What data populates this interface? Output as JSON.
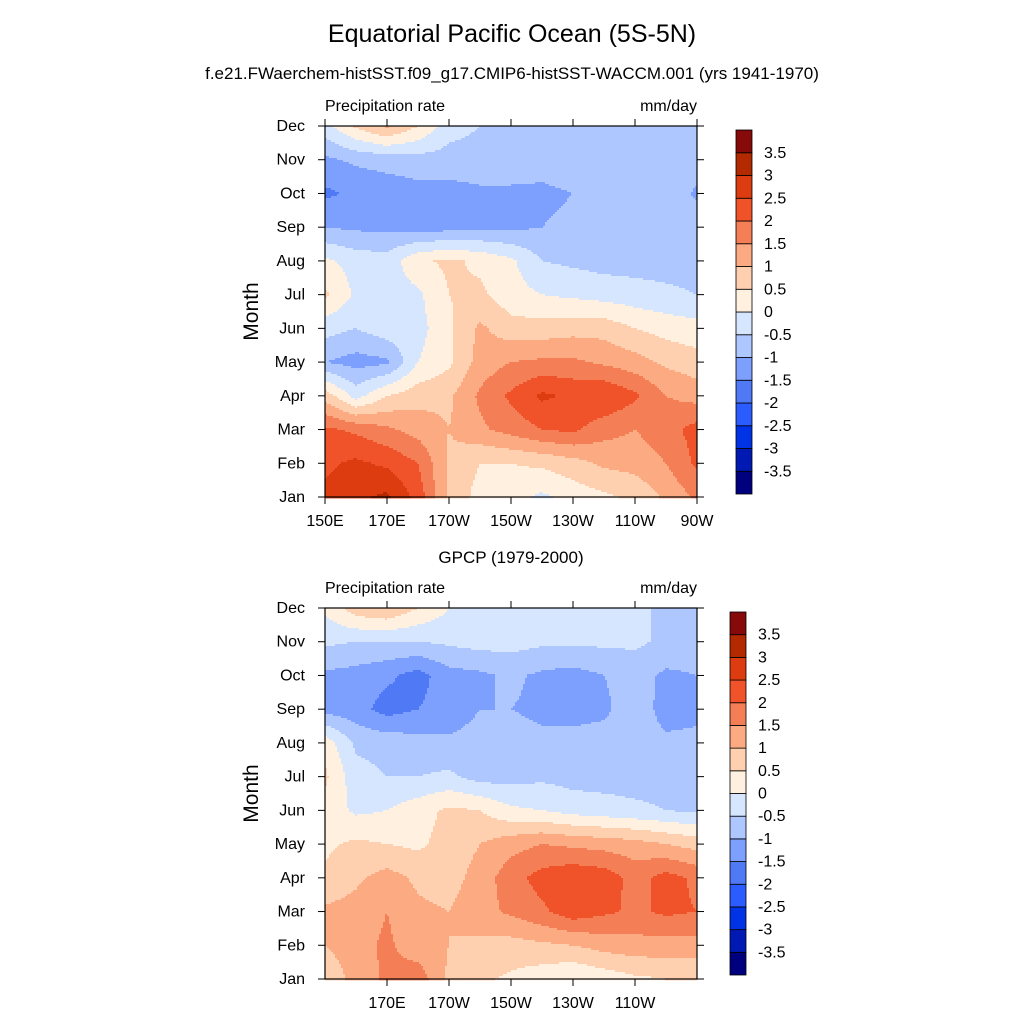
{
  "title": "Equatorial Pacific Ocean (5S-5N)",
  "subtitle": "f.e21.FWaerchem-histSST.f09_g17.CMIP6-histSST-WACCM.001 (yrs 1941-1970)",
  "obs_title": "GPCP (1979-2000)",
  "colors": [
    "#00007f",
    "#0019b3",
    "#0033e6",
    "#2b5cff",
    "#4f79f5",
    "#7da0ff",
    "#aec7ff",
    "#d6e6ff",
    "#fff0e0",
    "#ffd0b0",
    "#fcaa82",
    "#f47e55",
    "#f0522a",
    "#dc3c0f",
    "#b42a00",
    "#860a0a"
  ],
  "colorbar_labels": [
    "3.5",
    "3",
    "2.5",
    "2",
    "1.5",
    "1",
    "0.5",
    "0",
    "-0.5",
    "-1",
    "-1.5",
    "-2",
    "-2.5",
    "-3",
    "-3.5"
  ],
  "chart_data": [
    {
      "type": "heatmap",
      "panel": "model",
      "left_label": "Precipitation rate",
      "right_label": "mm/day",
      "ylabel": "Month",
      "xlabel": "",
      "x_ticks": [
        "150E",
        "170E",
        "170W",
        "150W",
        "130W",
        "110W",
        "90W"
      ],
      "y_ticks": [
        "Jan",
        "Feb",
        "Mar",
        "Apr",
        "May",
        "Jun",
        "Jul",
        "Aug",
        "Sep",
        "Oct",
        "Nov",
        "Dec"
      ],
      "x_range": [
        "150E",
        "90W"
      ],
      "levels": [
        -3.5,
        -3,
        -2.5,
        -2,
        -1.5,
        -1,
        -0.5,
        0,
        0.5,
        1,
        1.5,
        2,
        2.5,
        3,
        3.5
      ],
      "x": [
        "150E",
        "160E",
        "170E",
        "180",
        "170W",
        "160W",
        "150W",
        "140W",
        "130W",
        "120W",
        "110W",
        "100W",
        "90W"
      ],
      "rows": [
        [
          2.6,
          2.9,
          3.1,
          2.3,
          0.9,
          0.3,
          0.2,
          -0.1,
          0.2,
          0.4,
          0.6,
          1.1,
          1.6
        ],
        [
          2.4,
          2.6,
          2.4,
          2.0,
          0.9,
          0.5,
          0.5,
          0.6,
          0.8,
          1.1,
          1.2,
          1.5,
          2.1
        ],
        [
          2.1,
          1.9,
          1.6,
          1.3,
          1.0,
          1.4,
          1.7,
          2.0,
          2.1,
          1.7,
          1.5,
          1.8,
          2.2
        ],
        [
          0.8,
          -0.2,
          0.5,
          0.8,
          0.9,
          1.6,
          2.1,
          2.6,
          2.4,
          2.5,
          2.1,
          1.5,
          1.3
        ],
        [
          -1.0,
          -1.2,
          -1.1,
          0.0,
          0.4,
          1.2,
          1.5,
          1.6,
          1.6,
          1.4,
          1.2,
          0.9,
          0.7
        ],
        [
          -0.3,
          -0.5,
          -0.2,
          -0.2,
          0.4,
          1.1,
          0.7,
          0.7,
          0.8,
          0.8,
          0.5,
          0.3,
          0.2
        ],
        [
          0.6,
          -0.1,
          -0.3,
          -0.1,
          0.5,
          0.6,
          0.2,
          0.0,
          -0.1,
          -0.2,
          -0.3,
          -0.4,
          -0.5
        ],
        [
          0.1,
          -0.2,
          -0.3,
          0.4,
          0.6,
          0.4,
          0.1,
          -0.5,
          -0.6,
          -0.7,
          -0.7,
          -0.7,
          -0.7
        ],
        [
          -1.0,
          -1.1,
          -1.1,
          -1.2,
          -1.2,
          -1.1,
          -1.1,
          -1.0,
          -0.9,
          -0.7,
          -0.6,
          -0.6,
          -0.6
        ],
        [
          -1.6,
          -1.4,
          -1.3,
          -1.2,
          -1.2,
          -1.1,
          -1.1,
          -1.1,
          -1.0,
          -0.7,
          -0.6,
          -0.6,
          -1.1
        ],
        [
          -1.1,
          -0.9,
          -0.8,
          -0.7,
          -0.7,
          -0.7,
          -0.7,
          -0.8,
          -0.7,
          -0.6,
          -0.6,
          -0.6,
          -0.7
        ],
        [
          -0.2,
          0.6,
          1.1,
          0.5,
          -0.3,
          -0.5,
          -0.6,
          -0.6,
          -0.6,
          -0.5,
          -0.5,
          -0.5,
          -0.5
        ]
      ]
    },
    {
      "type": "heatmap",
      "panel": "obs",
      "left_label": "Precipitation rate",
      "right_label": "mm/day",
      "ylabel": "Month",
      "xlabel": "",
      "x_ticks": [
        "170E",
        "170W",
        "150W",
        "130W",
        "110W"
      ],
      "y_ticks": [
        "Jan",
        "Feb",
        "Mar",
        "Apr",
        "May",
        "Jun",
        "Jul",
        "Aug",
        "Sep",
        "Oct",
        "Nov",
        "Dec"
      ],
      "levels": [
        -3.5,
        -3,
        -2.5,
        -2,
        -1.5,
        -1,
        -0.5,
        0,
        0.5,
        1,
        1.5,
        2,
        2.5,
        3,
        3.5
      ],
      "x": [
        "150E",
        "160E",
        "170E",
        "180",
        "170W",
        "160W",
        "150W",
        "140W",
        "130W",
        "120W",
        "110W",
        "100W",
        "90W"
      ],
      "rows": [
        [
          0.6,
          1.2,
          1.6,
          1.8,
          0.9,
          0.6,
          0.4,
          0.2,
          0.0,
          0.2,
          0.4,
          0.5,
          0.5
        ],
        [
          1.0,
          1.3,
          1.6,
          1.2,
          1.0,
          0.9,
          0.8,
          0.9,
          1.0,
          1.2,
          1.3,
          1.3,
          1.3
        ],
        [
          1.1,
          1.2,
          1.5,
          1.1,
          1.0,
          1.3,
          1.6,
          1.9,
          2.3,
          2.1,
          1.9,
          2.1,
          2.0
        ],
        [
          0.6,
          0.9,
          1.2,
          0.9,
          0.8,
          1.2,
          1.8,
          2.2,
          2.4,
          2.3,
          1.8,
          2.2,
          1.9
        ],
        [
          0.4,
          0.6,
          0.5,
          0.4,
          0.7,
          1.0,
          1.3,
          1.5,
          1.4,
          1.3,
          1.2,
          1.0,
          0.8
        ],
        [
          0.3,
          -0.1,
          0.0,
          0.3,
          0.6,
          0.5,
          0.1,
          0.0,
          -0.2,
          -0.3,
          -0.4,
          -0.5,
          -0.6
        ],
        [
          0.6,
          -0.3,
          -0.5,
          -0.5,
          -0.4,
          -0.7,
          -0.7,
          -0.6,
          -0.7,
          -0.7,
          -0.7,
          -0.7,
          -0.7
        ],
        [
          0.3,
          -0.6,
          -0.7,
          -0.8,
          -0.9,
          -0.8,
          -0.8,
          -0.9,
          -0.8,
          -0.8,
          -0.8,
          -0.9,
          -0.9
        ],
        [
          -1.2,
          -1.3,
          -1.7,
          -1.5,
          -1.3,
          -1.0,
          -1.0,
          -1.1,
          -1.2,
          -1.1,
          -0.7,
          -1.2,
          -1.1
        ],
        [
          -1.1,
          -1.2,
          -1.4,
          -1.7,
          -1.2,
          -1.1,
          -0.9,
          -1.1,
          -1.2,
          -1.0,
          -0.8,
          -1.1,
          -1.0
        ],
        [
          -0.4,
          -0.5,
          -0.5,
          -0.5,
          -0.4,
          -0.3,
          -0.3,
          -0.4,
          -0.4,
          -0.4,
          -0.4,
          -0.6,
          -0.7
        ],
        [
          0.1,
          0.8,
          1.0,
          0.5,
          0.0,
          -0.3,
          -0.4,
          -0.4,
          -0.4,
          -0.5,
          -0.5,
          -0.5,
          -0.5
        ]
      ]
    }
  ]
}
